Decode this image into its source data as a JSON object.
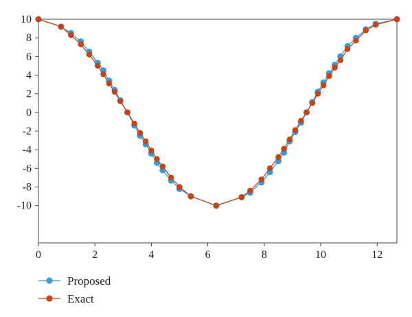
{
  "chart_data": {
    "type": "line",
    "title": "",
    "xlabel": "",
    "ylabel": "",
    "xlim": [
      0,
      12.7
    ],
    "ylim": [
      -14,
      10
    ],
    "xticks": [
      0,
      2,
      4,
      6,
      8,
      10,
      12
    ],
    "yticks": [
      10,
      8,
      6,
      4,
      2,
      0,
      -2,
      -4,
      -6,
      -8,
      -10
    ],
    "xtick_labels": [
      "0",
      "2",
      "4",
      "6",
      "8",
      "10",
      "12"
    ],
    "ytick_labels": [
      "10",
      "8",
      "6",
      "4",
      "2",
      "0",
      "-2",
      "-4",
      "-6",
      "-8",
      "-10"
    ],
    "grid": false,
    "legend": "bottom-left",
    "series": [
      {
        "name": "Proposed",
        "color": "#3a9ad9",
        "marker": "circle",
        "x": [
          0,
          0.8,
          1.15,
          1.5,
          1.8,
          2.1,
          2.3,
          2.5,
          2.7,
          2.9,
          3.15,
          3.4,
          3.6,
          3.8,
          4.0,
          4.2,
          4.4,
          4.7,
          5.0,
          5.4,
          6.3,
          7.2,
          7.5,
          7.9,
          8.2,
          8.5,
          8.7,
          8.9,
          9.1,
          9.3,
          9.5,
          9.7,
          9.9,
          10.1,
          10.3,
          10.5,
          10.7,
          10.95,
          11.25,
          11.6,
          11.95,
          12.7
        ],
        "y": [
          10,
          9.2,
          8.5,
          7.6,
          6.5,
          5.3,
          4.5,
          3.4,
          2.4,
          1.3,
          0,
          -1.4,
          -2.5,
          -3.4,
          -4.4,
          -5.4,
          -6.2,
          -7.3,
          -8.2,
          -9.0,
          -10,
          -9.1,
          -8.6,
          -7.5,
          -6.4,
          -5.2,
          -4.3,
          -3.1,
          -2.1,
          -1.1,
          0,
          1.1,
          2.2,
          3.2,
          4.2,
          5.1,
          6.0,
          7.1,
          8.0,
          8.9,
          9.5,
          10
        ]
      },
      {
        "name": "Exact",
        "color": "#c8430f",
        "marker": "circle",
        "x": [
          0,
          0.8,
          1.15,
          1.5,
          1.8,
          2.1,
          2.3,
          2.5,
          2.7,
          2.9,
          3.15,
          3.4,
          3.6,
          3.8,
          4.0,
          4.2,
          4.4,
          4.7,
          5.0,
          5.4,
          6.3,
          7.2,
          7.5,
          7.9,
          8.2,
          8.5,
          8.7,
          8.9,
          9.1,
          9.3,
          9.5,
          9.7,
          9.9,
          10.1,
          10.3,
          10.5,
          10.7,
          10.95,
          11.25,
          11.6,
          11.95,
          12.7
        ],
        "y": [
          10,
          9.2,
          8.3,
          7.3,
          6.2,
          5.0,
          4.1,
          3.1,
          2.2,
          1.2,
          0,
          -1.2,
          -2.2,
          -3.1,
          -4.1,
          -5.0,
          -5.8,
          -7.0,
          -8.0,
          -9.0,
          -10,
          -9.1,
          -8.4,
          -7.2,
          -6.0,
          -4.8,
          -3.9,
          -2.9,
          -1.9,
          -0.9,
          0,
          1.0,
          2.0,
          2.9,
          3.9,
          4.8,
          5.6,
          6.8,
          7.7,
          8.8,
          9.4,
          10
        ]
      }
    ]
  }
}
